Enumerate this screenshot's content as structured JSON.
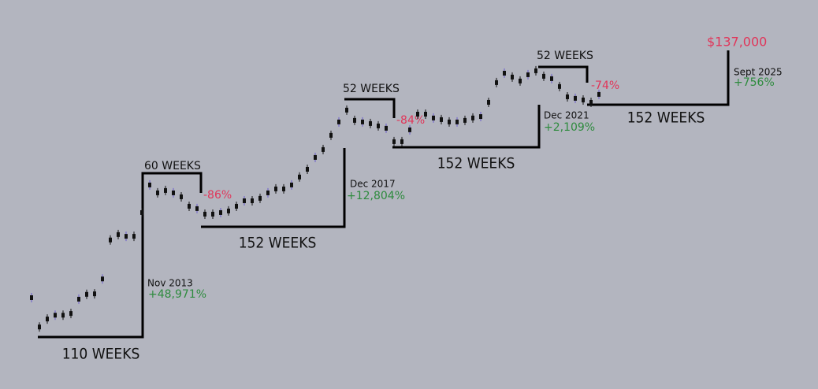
{
  "chart_data": {
    "type": "candle",
    "log_scale": true,
    "ylim": [
      0.233,
      1100000
    ],
    "color": "#111111",
    "values": [
      8.6,
      2.7,
      3.7,
      4.3,
      4.3,
      4.6,
      8.1,
      9.8,
      10,
      18,
      84,
      104,
      97,
      97,
      248,
      738,
      540,
      593,
      540,
      462,
      318,
      290,
      233,
      233,
      248,
      264,
      318,
      395,
      395,
      435,
      540,
      631,
      631,
      738,
      1010,
      1370,
      2190,
      2990,
      5240,
      8890,
      14200,
      9460,
      8890,
      8350,
      7600,
      6930,
      4080,
      4080,
      6520,
      12100,
      12100,
      10400,
      9750,
      8890,
      8890,
      9460,
      10400,
      11000,
      19300,
      42100,
      61100,
      52400,
      44800,
      57400,
      67100,
      54000,
      49200,
      36100,
      24000,
      22600,
      21200,
      19300,
      26400
    ],
    "annotations": {
      "cycle1": {
        "weeks_up": "110 WEEKS",
        "weeks_top": "60 WEEKS",
        "drawdown": "-86%",
        "date": "Nov 2013",
        "gain": "+48,971%"
      },
      "cycle2": {
        "weeks_up": "152 WEEKS",
        "weeks_top": "52 WEEKS",
        "drawdown": "-84%",
        "date": "Dec 2017",
        "gain": "+12,804%"
      },
      "cycle3": {
        "weeks_up": "152 WEEKS",
        "weeks_top": "52 WEEKS",
        "drawdown": "-74%",
        "date": "Dec 2021",
        "gain": "+2,109%"
      },
      "cycle4": {
        "weeks_up": "152 WEEKS",
        "date": "Sept 2025",
        "gain": "+756%",
        "target": "$137,000"
      }
    }
  }
}
